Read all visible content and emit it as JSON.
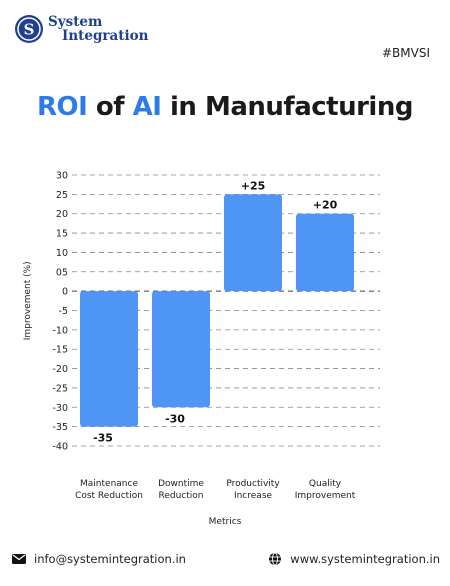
{
  "brand": {
    "name_line1": "System",
    "name_line2": "Integration",
    "logo_letter": "S",
    "color": "#1f3f8f"
  },
  "hashtag": "#BMVSI",
  "title": {
    "part1": "ROI",
    "part2": "of",
    "part3": "AI",
    "part4": "in Manufacturing"
  },
  "chart_data": {
    "type": "bar",
    "categories": [
      [
        "Maintenance",
        "Cost Reduction"
      ],
      [
        "Downtime",
        "Reduction"
      ],
      [
        "Productivity",
        "Increase"
      ],
      [
        "Quality",
        "Improvement"
      ]
    ],
    "values": [
      -35,
      -30,
      25,
      20
    ],
    "data_labels": [
      "-35",
      "-30",
      "+25",
      "+20"
    ],
    "xlabel": "Metrics",
    "ylabel": "Improvement (%)",
    "ylim": [
      -40,
      30
    ],
    "yticks": [
      "30",
      "25",
      "20",
      "15",
      "10",
      "05",
      "0",
      "-5",
      "-10",
      "-15",
      "-20",
      "-25",
      "-30",
      "-35",
      "-40"
    ],
    "ytick_values": [
      30,
      25,
      20,
      15,
      10,
      5,
      0,
      -5,
      -10,
      -15,
      -20,
      -25,
      -30,
      -35,
      -40
    ],
    "grid": true,
    "bar_color": "#4f95f5"
  },
  "footer": {
    "email": "info@systemintegration.in",
    "website": "www.systemintegration.in"
  }
}
